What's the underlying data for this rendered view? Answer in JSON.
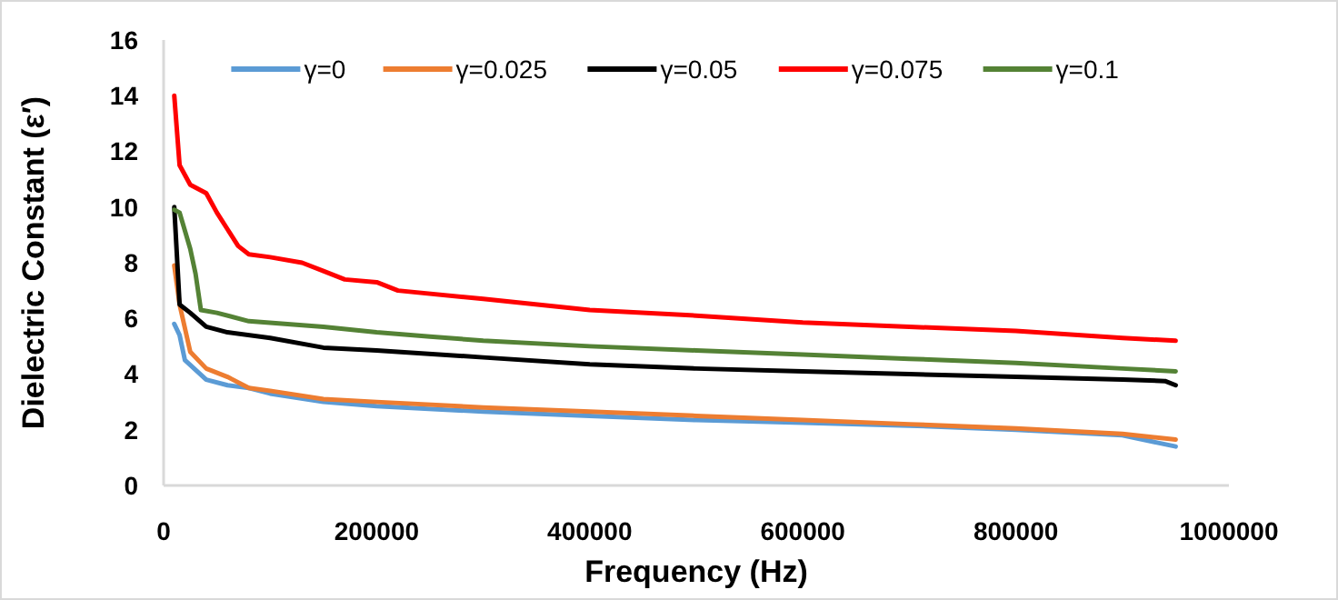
{
  "chart_data": {
    "type": "line",
    "xlabel": "Frequency (Hz)",
    "ylabel": "Dielectric Constant (ε′)",
    "xlim": [
      0,
      1000000
    ],
    "xticks": [
      0,
      200000,
      400000,
      600000,
      800000,
      1000000
    ],
    "ylim": [
      0,
      16
    ],
    "yticks": [
      0,
      2,
      4,
      6,
      8,
      10,
      12,
      14,
      16
    ],
    "grid": false,
    "legend": "top",
    "marker": "none",
    "line_style": "solid",
    "series": [
      {
        "name": "γ=0",
        "color": "#5b9bd5",
        "x": [
          10000,
          15000,
          20000,
          40000,
          60000,
          80000,
          100000,
          150000,
          200000,
          300000,
          400000,
          500000,
          600000,
          700000,
          800000,
          900000,
          950000
        ],
        "values": [
          5.8,
          5.4,
          4.5,
          3.8,
          3.6,
          3.5,
          3.3,
          3.0,
          2.85,
          2.65,
          2.5,
          2.35,
          2.25,
          2.15,
          2.0,
          1.8,
          1.4
        ]
      },
      {
        "name": "γ=0.025",
        "color": "#ed7d31",
        "x": [
          10000,
          15000,
          25000,
          40000,
          60000,
          80000,
          100000,
          150000,
          200000,
          300000,
          400000,
          500000,
          600000,
          700000,
          800000,
          900000,
          950000
        ],
        "values": [
          7.9,
          6.5,
          4.8,
          4.2,
          3.9,
          3.5,
          3.4,
          3.1,
          3.0,
          2.8,
          2.65,
          2.5,
          2.35,
          2.2,
          2.05,
          1.85,
          1.65
        ]
      },
      {
        "name": "γ=0.05",
        "color": "#000000",
        "x": [
          10000,
          15000,
          25000,
          40000,
          60000,
          100000,
          150000,
          200000,
          300000,
          400000,
          500000,
          600000,
          700000,
          800000,
          900000,
          940000,
          950000
        ],
        "values": [
          10,
          6.5,
          6.2,
          5.7,
          5.5,
          5.3,
          4.95,
          4.85,
          4.6,
          4.35,
          4.2,
          4.1,
          4.0,
          3.9,
          3.8,
          3.75,
          3.6
        ]
      },
      {
        "name": "γ=0.075",
        "color": "#ff0000",
        "x": [
          10000,
          15000,
          25000,
          40000,
          50000,
          60000,
          70000,
          80000,
          100000,
          130000,
          150000,
          170000,
          200000,
          220000,
          300000,
          400000,
          500000,
          600000,
          700000,
          800000,
          900000,
          950000
        ],
        "values": [
          14,
          11.5,
          10.8,
          10.5,
          9.8,
          9.2,
          8.6,
          8.3,
          8.2,
          8.0,
          7.7,
          7.4,
          7.3,
          7.0,
          6.7,
          6.3,
          6.1,
          5.85,
          5.7,
          5.55,
          5.3,
          5.2
        ]
      },
      {
        "name": "γ=0.1",
        "color": "#548235",
        "x": [
          10000,
          15000,
          25000,
          30000,
          35000,
          50000,
          80000,
          150000,
          200000,
          250000,
          300000,
          400000,
          500000,
          600000,
          700000,
          800000,
          900000,
          950000
        ],
        "values": [
          9.9,
          9.8,
          8.5,
          7.6,
          6.3,
          6.2,
          5.9,
          5.7,
          5.5,
          5.35,
          5.2,
          5.0,
          4.85,
          4.7,
          4.55,
          4.4,
          4.2,
          4.1
        ]
      }
    ]
  }
}
